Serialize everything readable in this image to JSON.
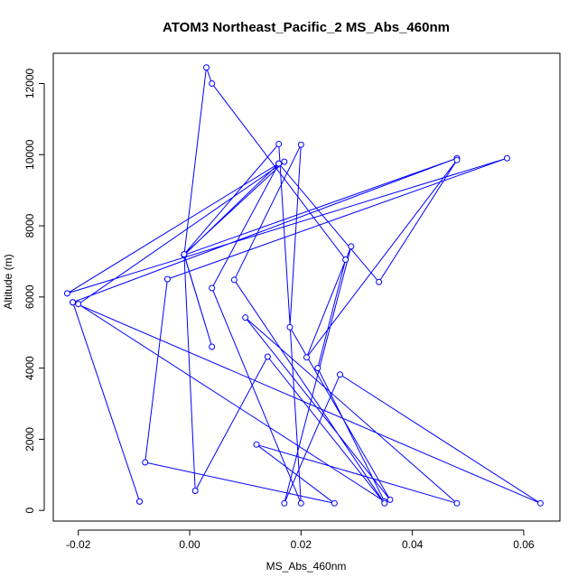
{
  "chart_data": {
    "type": "line",
    "title": "ATOM3 Northeast_Pacific_2 MS_Abs_460nm",
    "xlabel": "MS_Abs_460nm",
    "ylabel": "Altitude (m)",
    "xlim": [
      -0.0245,
      0.0665
    ],
    "ylim": [
      -300,
      12850
    ],
    "x_ticks": [
      -0.02,
      0.0,
      0.02,
      0.04,
      0.06
    ],
    "x_tick_labels": [
      "-0.02",
      "0.00",
      "0.02",
      "0.04",
      "0.06"
    ],
    "y_ticks": [
      0,
      2000,
      4000,
      6000,
      8000,
      10000,
      12000
    ],
    "y_tick_labels": [
      "0",
      "2000",
      "4000",
      "6000",
      "8000",
      "10000",
      "12000"
    ],
    "grid": false,
    "marker": "open-circle",
    "color": "#0000ff",
    "series": [
      {
        "points": [
          [
            -0.009,
            250
          ],
          [
            -0.021,
            5850
          ],
          [
            0.048,
            9900
          ],
          [
            -0.001,
            7180
          ],
          [
            0.004,
            4600
          ],
          [
            -0.001,
            7200
          ],
          [
            0.017,
            9800
          ],
          [
            -0.02,
            5800
          ],
          [
            0.035,
            250
          ],
          [
            0.023,
            4000
          ],
          [
            0.028,
            7050
          ],
          [
            0.004,
            12000
          ],
          [
            0.003,
            12450
          ],
          [
            -0.001,
            7180
          ],
          [
            0.016,
            9750
          ],
          [
            -0.022,
            6100
          ],
          [
            0.057,
            9900
          ],
          [
            -0.004,
            6500
          ],
          [
            -0.008,
            1350
          ],
          [
            0.026,
            200
          ],
          [
            0.012,
            1850
          ],
          [
            0.048,
            200
          ],
          [
            0.01,
            5420
          ],
          [
            0.036,
            300
          ],
          [
            0.018,
            5150
          ],
          [
            0.02,
            10280
          ],
          [
            0.008,
            6480
          ],
          [
            0.035,
            200
          ],
          [
            0.014,
            4320
          ],
          [
            0.001,
            550
          ],
          [
            -0.001,
            7200
          ],
          [
            0.016,
            10300
          ],
          [
            0.02,
            200
          ],
          [
            0.004,
            6250
          ],
          [
            0.016,
            9750
          ],
          [
            0.034,
            6420
          ],
          [
            0.048,
            9850
          ],
          [
            0.021,
            4300
          ],
          [
            0.029,
            7420
          ],
          [
            0.017,
            200
          ],
          [
            0.027,
            3820
          ],
          [
            0.063,
            200
          ],
          [
            -0.021,
            5850
          ],
          [
            -0.009,
            250
          ]
        ]
      }
    ]
  }
}
